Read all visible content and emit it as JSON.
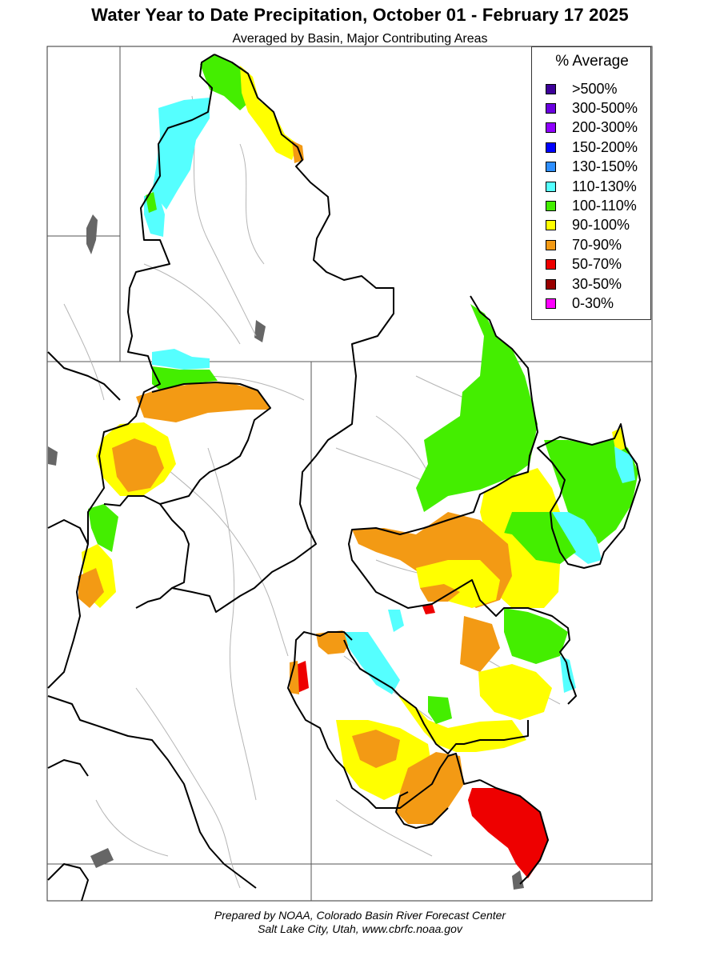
{
  "title": "Water Year to Date Precipitation, October 01  - February 17 2025",
  "subtitle": "Averaged by Basin, Major Contributing Areas",
  "legend": {
    "title": "% Average",
    "items": [
      {
        "label": ">500%",
        "color": "#3d0099"
      },
      {
        "label": "300-500%",
        "color": "#6a00e0"
      },
      {
        "label": "200-300%",
        "color": "#8f00ff"
      },
      {
        "label": "150-200%",
        "color": "#0000ff"
      },
      {
        "label": "130-150%",
        "color": "#2e8fff"
      },
      {
        "label": "110-130%",
        "color": "#55ffff"
      },
      {
        "label": "100-110%",
        "color": "#44ee00"
      },
      {
        "label": "90-100%",
        "color": "#ffff00"
      },
      {
        "label": "70-90%",
        "color": "#f39a14"
      },
      {
        "label": "50-70%",
        "color": "#ee0000"
      },
      {
        "label": "30-50%",
        "color": "#990000"
      },
      {
        "label": "0-30%",
        "color": "#ff00ff"
      }
    ]
  },
  "footer": {
    "line1": "Prepared by NOAA, Colorado Basin River Forecast Center",
    "line2": "Salt Lake City, Utah, www.cbrfc.noaa.gov"
  }
}
